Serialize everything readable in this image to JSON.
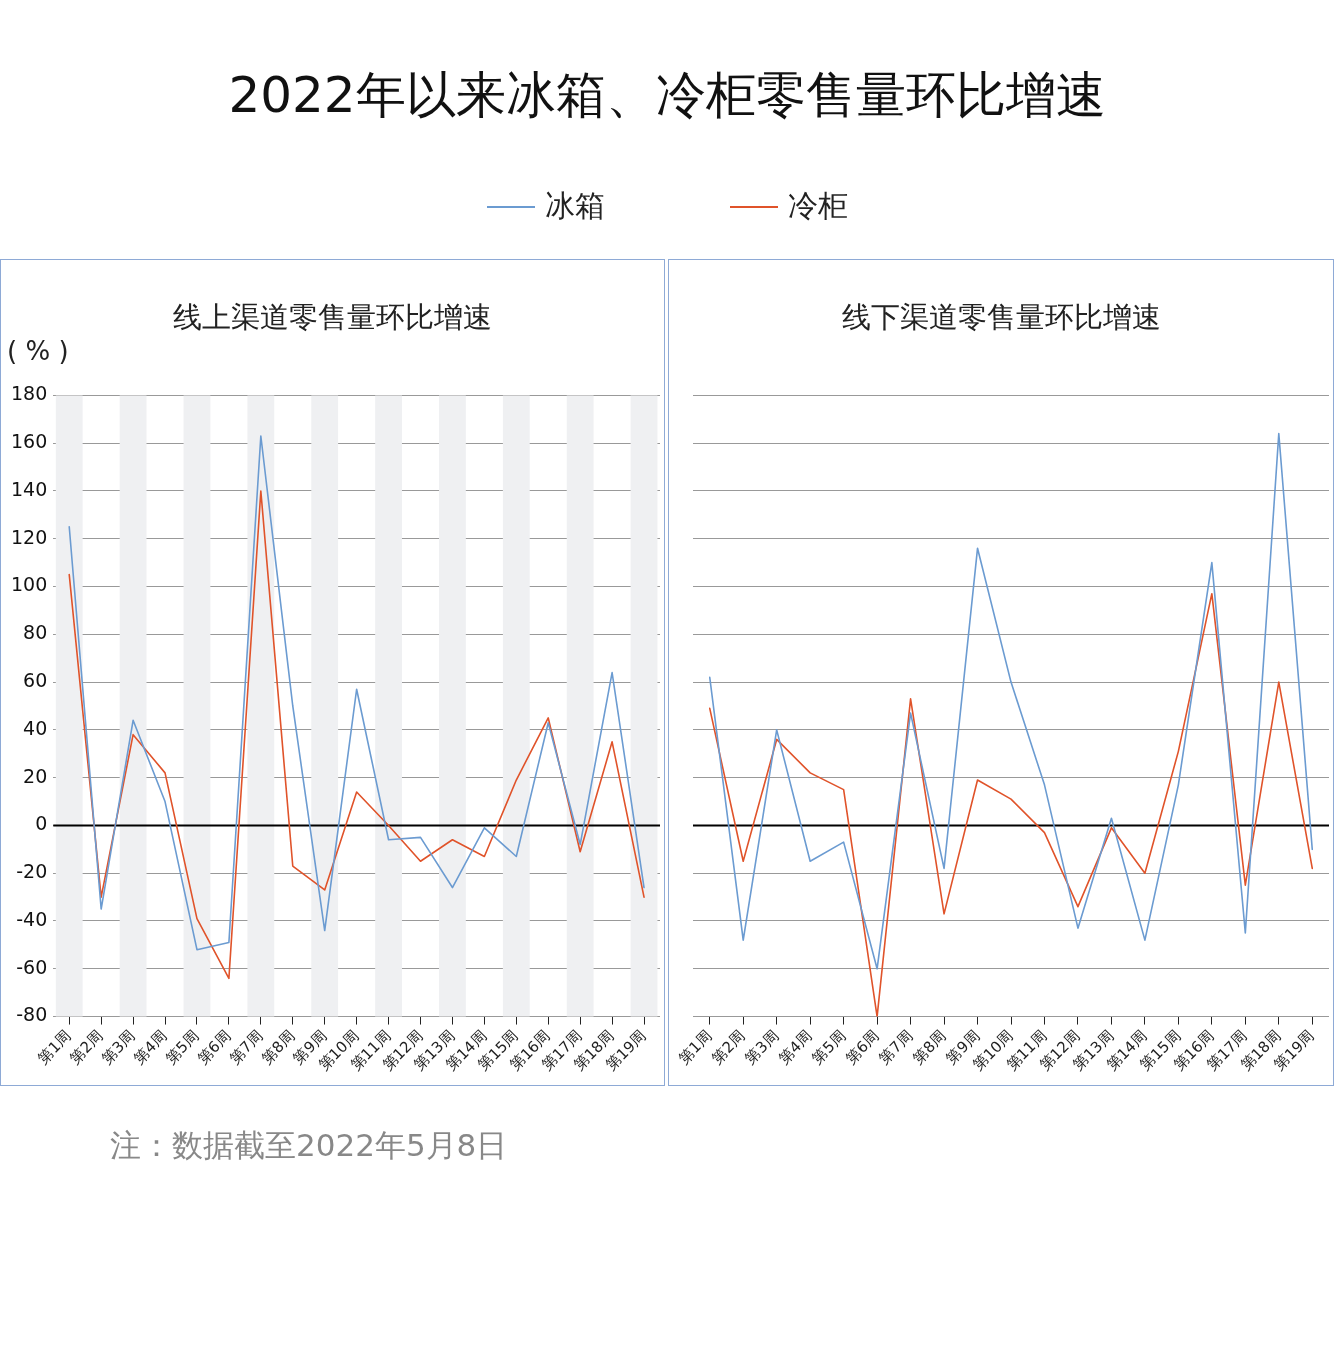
{
  "chart_data": [
    {
      "type": "line",
      "title": "2022年以来冰箱、冷柜零售量环比增速",
      "subtitle": "线上渠道零售量环比增速",
      "ylabel": "( % )",
      "categories": [
        "第1周",
        "第2周",
        "第3周",
        "第4周",
        "第5周",
        "第6周",
        "第7周",
        "第8周",
        "第9周",
        "第10周",
        "第11周",
        "第12周",
        "第13周",
        "第14周",
        "第15周",
        "第16周",
        "第17周",
        "第18周",
        "第19周"
      ],
      "series": [
        {
          "name": "冰箱",
          "color": "#6b9bd1",
          "values": [
            125,
            -35,
            44,
            10,
            -52,
            -49,
            163,
            50,
            -44,
            57,
            -6,
            -5,
            -26,
            -1,
            -13,
            43,
            -8,
            64,
            -26
          ]
        },
        {
          "name": "冷柜",
          "color": "#e0532a",
          "values": [
            105,
            -30,
            38,
            22,
            -39,
            -64,
            140,
            -17,
            -27,
            14,
            0,
            -15,
            -6,
            -13,
            19,
            45,
            -11,
            35,
            -30
          ]
        }
      ],
      "ylim": [
        -80,
        180
      ],
      "yticks": [
        -80,
        -60,
        -40,
        -20,
        0,
        20,
        40,
        60,
        80,
        100,
        120,
        140,
        160,
        180
      ],
      "grid": "y",
      "legend": "top",
      "marker": "none",
      "line_style": "solid",
      "ref_lines": [
        {
          "axis": "y",
          "value": 0,
          "color": "#000000"
        }
      ],
      "bands": [
        {
          "axis": "x",
          "from": "第1周",
          "to": "第1周",
          "color": "#eff0f2"
        },
        {
          "axis": "x",
          "from": "第3周",
          "to": "第3周",
          "color": "#eff0f2"
        },
        {
          "axis": "x",
          "from": "第5周",
          "to": "第5周",
          "color": "#eff0f2"
        },
        {
          "axis": "x",
          "from": "第7周",
          "to": "第7周",
          "color": "#eff0f2"
        },
        {
          "axis": "x",
          "from": "第9周",
          "to": "第9周",
          "color": "#eff0f2"
        },
        {
          "axis": "x",
          "from": "第11周",
          "to": "第11周",
          "color": "#eff0f2"
        },
        {
          "axis": "x",
          "from": "第13周",
          "to": "第13周",
          "color": "#eff0f2"
        },
        {
          "axis": "x",
          "from": "第15周",
          "to": "第15周",
          "color": "#eff0f2"
        },
        {
          "axis": "x",
          "from": "第17周",
          "to": "第17周",
          "color": "#eff0f2"
        },
        {
          "axis": "x",
          "from": "第19周",
          "to": "第19周",
          "color": "#eff0f2"
        }
      ],
      "annotations": [
        "注：数据截至2022年5月8日"
      ]
    },
    {
      "type": "line",
      "subtitle": "线下渠道零售量环比增速",
      "categories": [
        "第1周",
        "第2周",
        "第3周",
        "第4周",
        "第5周",
        "第6周",
        "第7周",
        "第8周",
        "第9周",
        "第10周",
        "第11周",
        "第12周",
        "第13周",
        "第14周",
        "第15周",
        "第16周",
        "第17周",
        "第18周",
        "第19周"
      ],
      "series": [
        {
          "name": "冰箱",
          "color": "#6b9bd1",
          "values": [
            62,
            -48,
            40,
            -15,
            -7,
            -60,
            47,
            -18,
            116,
            60,
            17,
            -43,
            3,
            -48,
            17,
            110,
            -45,
            164,
            -10
          ]
        },
        {
          "name": "冷柜",
          "color": "#e0532a",
          "values": [
            49,
            -15,
            36,
            22,
            15,
            -80,
            53,
            -37,
            19,
            11,
            -3,
            -34,
            -1,
            -20,
            31,
            97,
            -25,
            60,
            -18
          ]
        }
      ],
      "ylim": [
        -80,
        180
      ],
      "yticks": [
        -80,
        -60,
        -40,
        -20,
        0,
        20,
        40,
        60,
        80,
        100,
        120,
        140,
        160,
        180
      ],
      "grid": "y",
      "tick_labels": "x",
      "marker": "none",
      "line_style": "solid",
      "ref_lines": [
        {
          "axis": "y",
          "value": 0,
          "color": "#000000"
        }
      ]
    }
  ]
}
